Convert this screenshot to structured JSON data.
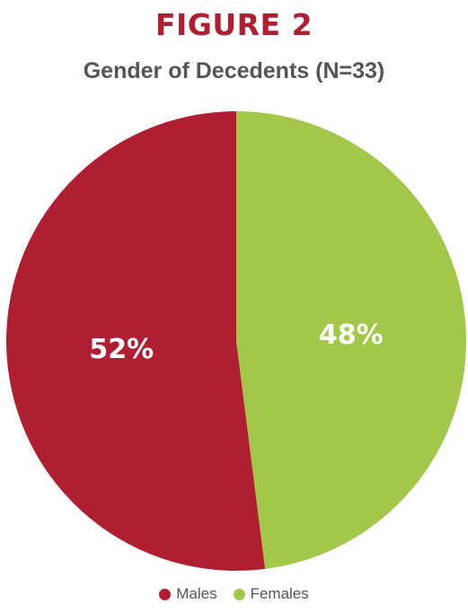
{
  "figure_label": "FIGURE 2",
  "chart_data": {
    "type": "pie",
    "title": "Gender of Decedents (N=33)",
    "slices": [
      {
        "name": "Females",
        "value": 48,
        "label": "48%",
        "color": "#a2c84a"
      },
      {
        "name": "Males",
        "value": 52,
        "label": "52%",
        "color": "#b01e32"
      }
    ],
    "legend_position": "bottom",
    "start_angle_deg": 0,
    "direction": "clockwise"
  },
  "legend": {
    "items": [
      {
        "label": "Males",
        "color": "#b01e32"
      },
      {
        "label": "Females",
        "color": "#a2c84a"
      }
    ]
  },
  "colors": {
    "figure_label": "#b01e32",
    "title": "#555555",
    "slice_label": "#ffffff"
  }
}
